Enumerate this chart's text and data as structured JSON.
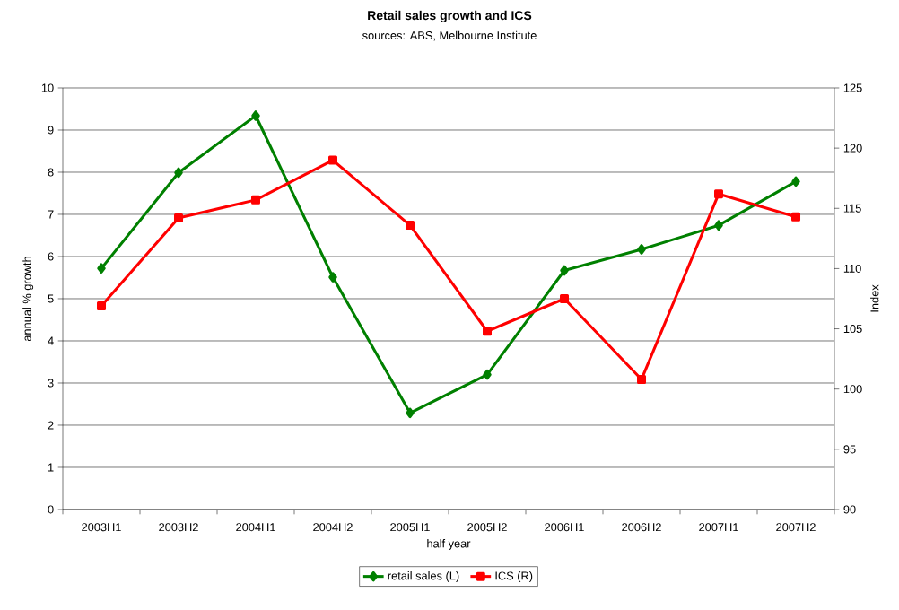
{
  "chart_data": {
    "type": "line",
    "title": "Retail sales growth and ICS",
    "subtitle": "sources: ABS, Melbourne Institute",
    "xlabel": "half year",
    "ylabel": "annual % growth",
    "y2label": "Index",
    "categories": [
      "2003H1",
      "2003H2",
      "2004H1",
      "2004H2",
      "2005H1",
      "2005H2",
      "2006H1",
      "2006H2",
      "2007H1",
      "2007H2"
    ],
    "series": [
      {
        "name": "retail sales (L)",
        "color": "#008000",
        "marker": "diamond",
        "values": [
          5.72,
          7.99,
          9.34,
          5.51,
          2.29,
          3.2,
          5.67,
          6.17,
          6.74,
          7.78
        ]
      },
      {
        "name": "ICS (R)",
        "color": "#ff0000",
        "marker": "square",
        "axis": "y2",
        "values": [
          106.9,
          114.2,
          115.7,
          119.0,
          113.6,
          104.8,
          107.5,
          100.8,
          116.2,
          114.3
        ]
      }
    ],
    "ylim": [
      0,
      10
    ],
    "yticks": [
      0,
      1,
      2,
      3,
      4,
      5,
      6,
      7,
      8,
      9,
      10
    ],
    "y2lim": [
      90,
      125
    ],
    "y2ticks": [
      90,
      95,
      100,
      105,
      110,
      115,
      120,
      125
    ],
    "grid": "y",
    "legend": "bottom"
  }
}
